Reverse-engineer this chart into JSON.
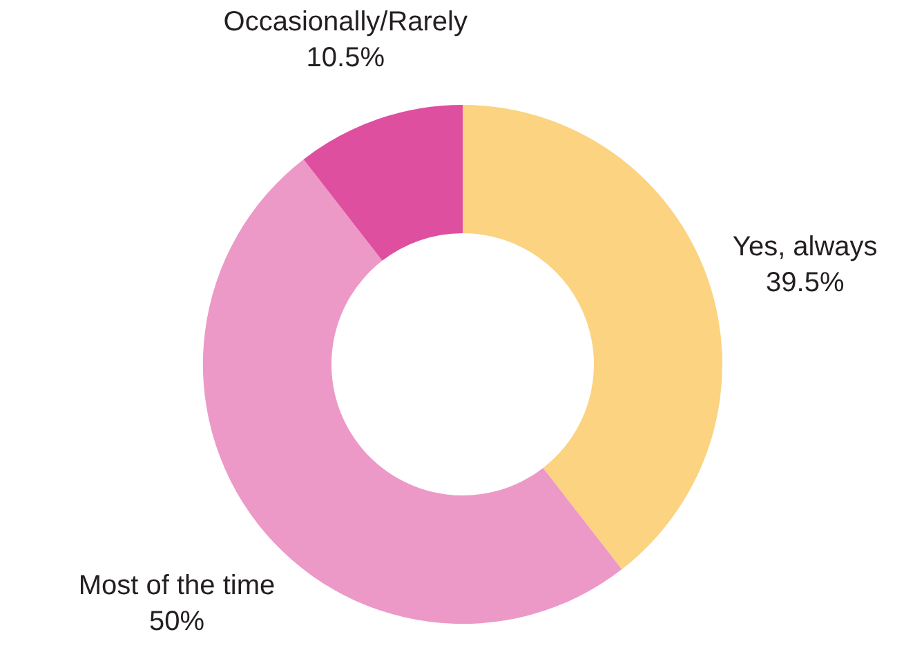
{
  "chart_data": {
    "type": "donut",
    "categories": [
      "Yes, always",
      "Most of the time",
      "Occasionally/Rarely"
    ],
    "values": [
      39.5,
      50,
      10.5
    ],
    "colors": [
      "#fbd381",
      "#ec99c7",
      "#df4f9f"
    ],
    "value_labels": [
      "39.5%",
      "50%",
      "10.5%"
    ]
  }
}
